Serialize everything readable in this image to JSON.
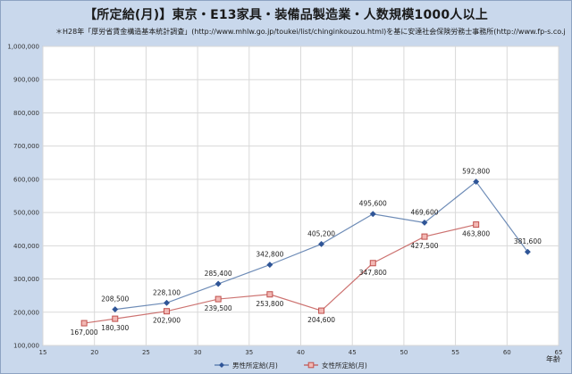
{
  "title": "【所定給(月)】東京・E13家具・装備品製造業・人数規模1000人以上",
  "note": "＊H28年「厚労省賃金構造基本統計調査」(http://www.mhlw.go.jp/toukei/list/chinginkouzou.html)を基に安達社会保険労務士事務所(http://www.fp-s.co.jp)が作成",
  "chart_data": {
    "type": "line",
    "xlabel": "年齢",
    "ylabel": "",
    "xlim": [
      15,
      65
    ],
    "ylim": [
      100000,
      1000000
    ],
    "x_ticks": [
      "15",
      "20",
      "25",
      "30",
      "35",
      "40",
      "45",
      "50",
      "55",
      "60",
      "65"
    ],
    "y_ticks": [
      "100,000",
      "200,000",
      "300,000",
      "400,000",
      "500,000",
      "600,000",
      "700,000",
      "800,000",
      "900,000",
      "1,000,000"
    ],
    "grid": true,
    "legend_position": "bottom",
    "series": [
      {
        "name": "男性所定給(月)",
        "color": "#4a6fa5",
        "marker": "diamond",
        "x": [
          22,
          27,
          32,
          37,
          42,
          47,
          52,
          57,
          62
        ],
        "values": [
          208500,
          228100,
          285400,
          342800,
          405200,
          495600,
          469600,
          592800,
          381600
        ],
        "labels": [
          "208,500",
          "228,100",
          "285,400",
          "342,800",
          "405,200",
          "495,600",
          "469,600",
          "592,800",
          "381,600"
        ]
      },
      {
        "name": "女性所定給(月)",
        "color": "#c0504d",
        "marker": "square",
        "x": [
          19,
          22,
          27,
          32,
          37,
          42,
          47,
          52,
          57
        ],
        "values": [
          167000,
          180300,
          202900,
          239500,
          253800,
          204600,
          347800,
          427500,
          463800
        ],
        "labels": [
          "167,000",
          "180,300",
          "202,900",
          "239,500",
          "253,800",
          "204,600",
          "347,800",
          "427,500",
          "463,800"
        ]
      }
    ]
  }
}
